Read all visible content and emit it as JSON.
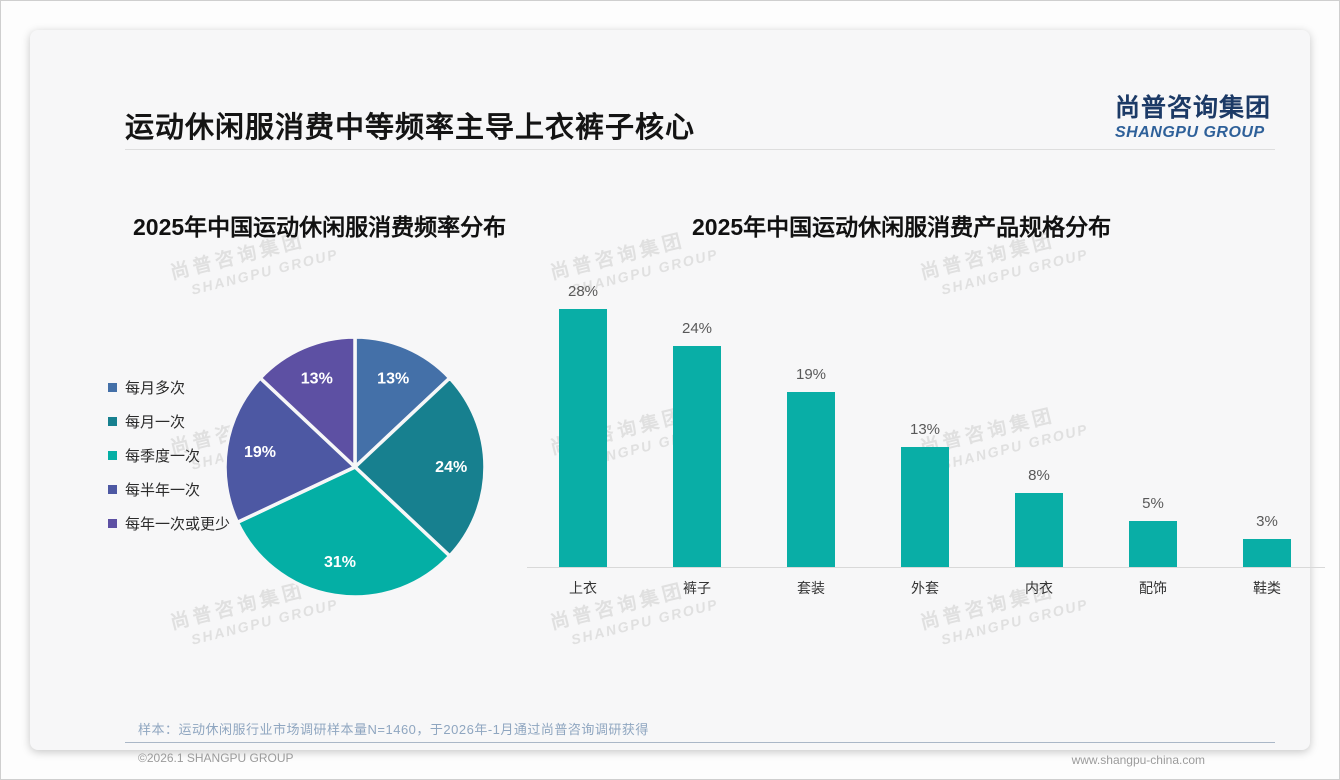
{
  "slide": {
    "title": "运动休闲服消费中等频率主导上衣裤子核心",
    "logo": {
      "cn": "尚普咨询集团",
      "en": "SHANGPU GROUP"
    },
    "watermark": {
      "line1": "尚普咨询集团",
      "line2": "SHANGPU GROUP"
    },
    "footer_note": "样本：运动休闲服行业市场调研样本量N=1460，于2026年-1月通过尚普咨询调研获得",
    "footer_left": "©2026.1 SHANGPU GROUP",
    "footer_right": "www.shangpu-china.com",
    "colors": {
      "logo_cn": "#1c3a66",
      "logo_en": "#2e6099",
      "bar": "#09aea6",
      "footer_note": "#8fa6c0"
    }
  },
  "chart_data": [
    {
      "type": "pie",
      "title": "2025年中国运动休闲服消费频率分布",
      "labels": [
        "每月多次",
        "每月一次",
        "每季度一次",
        "每半年一次",
        "每年一次或更少"
      ],
      "values": [
        13,
        24,
        31,
        19,
        13
      ],
      "data_labels": [
        "13%",
        "24%",
        "31%",
        "19%",
        "13%"
      ],
      "colors": [
        "#4470a8",
        "#17808f",
        "#04afa5",
        "#4d58a3",
        "#5d50a3"
      ],
      "legend_position": "left",
      "start_angle_deg": -90,
      "direction": "clockwise"
    },
    {
      "type": "bar",
      "title": "2025年中国运动休闲服消费产品规格分布",
      "categories": [
        "上衣",
        "裤子",
        "套装",
        "外套",
        "内衣",
        "配饰",
        "鞋类"
      ],
      "values": [
        28,
        24,
        19,
        13,
        8,
        5,
        3
      ],
      "data_labels": [
        "28%",
        "24%",
        "19%",
        "13%",
        "8%",
        "5%",
        "3%"
      ],
      "bar_color": "#09aea6",
      "ylim": [
        0,
        30
      ],
      "grid": false,
      "value_labels_position": "above"
    }
  ]
}
